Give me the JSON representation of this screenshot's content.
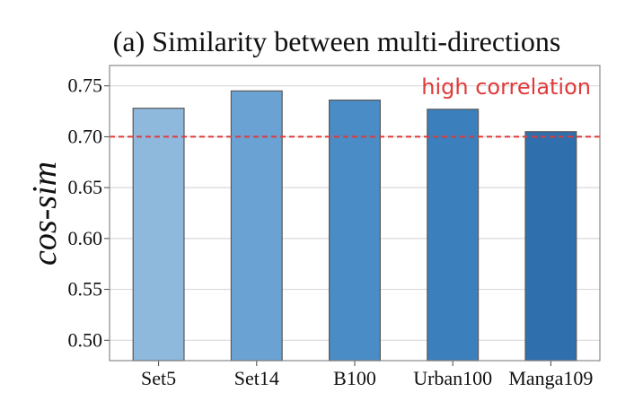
{
  "chart_data": {
    "type": "bar",
    "title": "(a) Similarity between multi-directions",
    "xlabel": "",
    "ylabel": "cos-sim",
    "categories": [
      "Set5",
      "Set14",
      "B100",
      "Urban100",
      "Manga109"
    ],
    "values": [
      0.728,
      0.745,
      0.736,
      0.727,
      0.705
    ],
    "bar_colors": [
      "#8fb8dd",
      "#6aa2d4",
      "#4a8cc5",
      "#3b7fbc",
      "#2f6fae"
    ],
    "ylim": [
      0.48,
      0.77
    ],
    "yticks": [
      "0.50",
      "0.55",
      "0.60",
      "0.65",
      "0.70",
      "0.75"
    ],
    "grid": "y",
    "reference_line": {
      "y": 0.7,
      "color": "#e03a3a",
      "style": "dashed",
      "label": "high correlation"
    }
  }
}
